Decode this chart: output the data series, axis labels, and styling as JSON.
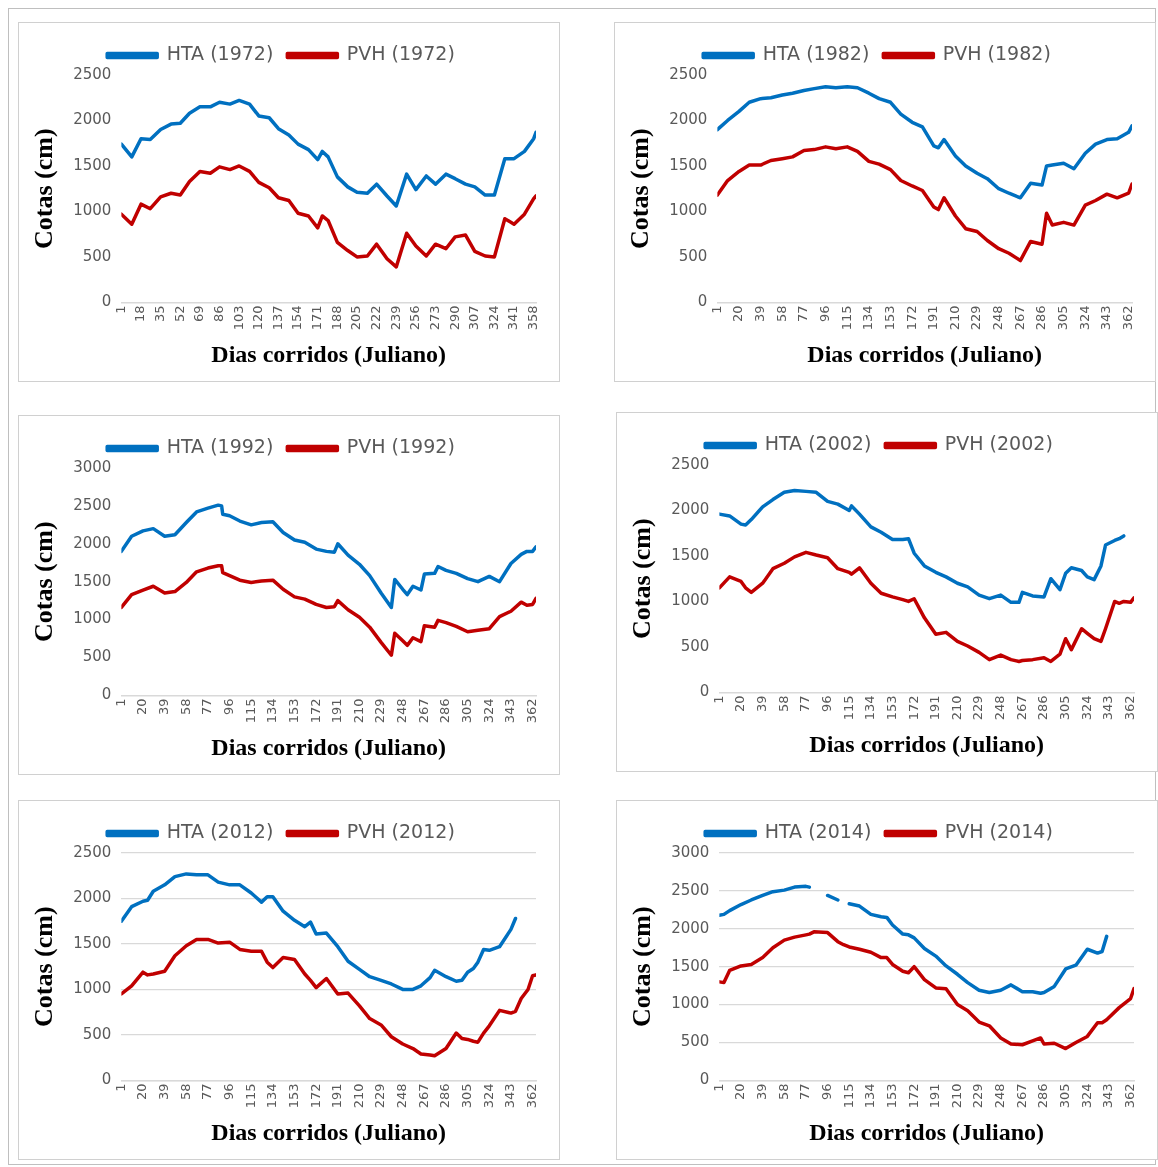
{
  "chart_data": [
    {
      "type": "line",
      "xlabel": "Dias corridos (Juliano)",
      "ylabel": "Cotas (cm)",
      "legend": "top",
      "marker": "none",
      "xlim": [
        1,
        360
      ],
      "xticks": [
        1,
        18,
        35,
        52,
        69,
        86,
        103,
        120,
        137,
        154,
        171,
        188,
        205,
        222,
        239,
        256,
        273,
        290,
        307,
        324,
        341,
        358
      ],
      "ylim": [
        0,
        2500
      ],
      "yticks": [
        0,
        500,
        1000,
        1500,
        2000,
        2500
      ],
      "x": [
        1,
        10,
        18,
        26,
        35,
        44,
        52,
        60,
        69,
        78,
        86,
        95,
        103,
        112,
        120,
        129,
        137,
        146,
        154,
        163,
        171,
        175,
        180,
        188,
        197,
        205,
        214,
        222,
        231,
        239,
        248,
        256,
        265,
        273,
        282,
        290,
        299,
        307,
        316,
        324,
        333,
        341,
        350,
        358,
        360
      ],
      "series": [
        {
          "name": "HTA (1972)",
          "color": "#0070c0",
          "values": [
            1740,
            1600,
            1800,
            1790,
            1900,
            1960,
            1970,
            2080,
            2150,
            2150,
            2200,
            2180,
            2220,
            2180,
            2050,
            2030,
            1910,
            1840,
            1740,
            1680,
            1570,
            1660,
            1600,
            1380,
            1270,
            1210,
            1200,
            1300,
            1170,
            1060,
            1410,
            1240,
            1390,
            1300,
            1410,
            1360,
            1300,
            1270,
            1180,
            1180,
            1580,
            1580,
            1660,
            1800,
            1870
          ]
        },
        {
          "name": "PVH (1972)",
          "color": "#c00000",
          "values": [
            970,
            860,
            1080,
            1030,
            1160,
            1200,
            1180,
            1330,
            1440,
            1420,
            1490,
            1460,
            1500,
            1440,
            1320,
            1260,
            1150,
            1120,
            980,
            950,
            820,
            950,
            900,
            660,
            570,
            500,
            510,
            640,
            480,
            390,
            760,
            620,
            510,
            640,
            590,
            720,
            740,
            560,
            510,
            500,
            920,
            860,
            970,
            1140,
            1170
          ]
        }
      ]
    },
    {
      "type": "line",
      "xlabel": "Dias corridos (Juliano)",
      "ylabel": "Cotas (cm)",
      "legend": "top",
      "marker": "none",
      "xlim": [
        1,
        365
      ],
      "xticks": [
        1,
        20,
        39,
        58,
        77,
        96,
        115,
        134,
        153,
        172,
        191,
        210,
        229,
        248,
        267,
        286,
        305,
        324,
        343,
        362
      ],
      "ylim": [
        0,
        2500
      ],
      "yticks": [
        0,
        500,
        1000,
        1500,
        2000,
        2500
      ],
      "x": [
        1,
        10,
        20,
        29,
        39,
        48,
        58,
        67,
        77,
        86,
        96,
        105,
        115,
        124,
        134,
        143,
        153,
        162,
        172,
        181,
        191,
        195,
        200,
        210,
        219,
        229,
        238,
        248,
        257,
        267,
        276,
        286,
        290,
        295,
        305,
        314,
        324,
        333,
        343,
        352,
        362,
        365
      ],
      "series": [
        {
          "name": "HTA (1982)",
          "color": "#0070c0",
          "values": [
            1900,
            2000,
            2100,
            2200,
            2240,
            2250,
            2280,
            2300,
            2330,
            2350,
            2370,
            2360,
            2370,
            2360,
            2300,
            2240,
            2200,
            2070,
            1980,
            1930,
            1720,
            1700,
            1790,
            1610,
            1500,
            1420,
            1360,
            1250,
            1200,
            1150,
            1310,
            1290,
            1500,
            1510,
            1530,
            1470,
            1640,
            1740,
            1790,
            1800,
            1870,
            1940
          ]
        },
        {
          "name": "PVH (1982)",
          "color": "#c00000",
          "values": [
            1180,
            1340,
            1440,
            1510,
            1510,
            1560,
            1580,
            1600,
            1670,
            1680,
            1710,
            1690,
            1710,
            1660,
            1550,
            1520,
            1460,
            1340,
            1280,
            1230,
            1050,
            1020,
            1150,
            950,
            810,
            780,
            680,
            590,
            540,
            460,
            670,
            640,
            980,
            850,
            880,
            850,
            1070,
            1120,
            1190,
            1150,
            1200,
            1300
          ]
        }
      ]
    },
    {
      "type": "line",
      "xlabel": "Dias corridos (Juliano)",
      "ylabel": "Cotas (cm)",
      "legend": "top",
      "marker": "none",
      "xlim": [
        1,
        365
      ],
      "xticks": [
        1,
        20,
        39,
        58,
        77,
        96,
        115,
        134,
        153,
        172,
        191,
        210,
        229,
        248,
        267,
        286,
        305,
        324,
        343,
        362
      ],
      "ylim": [
        0,
        3000
      ],
      "yticks": [
        0,
        500,
        1000,
        1500,
        2000,
        2500,
        3000
      ],
      "x": [
        1,
        10,
        20,
        29,
        39,
        48,
        58,
        67,
        77,
        86,
        89,
        90,
        96,
        105,
        115,
        124,
        134,
        143,
        153,
        162,
        172,
        181,
        188,
        191,
        200,
        210,
        219,
        229,
        238,
        241,
        248,
        252,
        257,
        264,
        267,
        276,
        279,
        286,
        295,
        305,
        314,
        324,
        333,
        343,
        352,
        357,
        362,
        365
      ],
      "series": [
        {
          "name": "HTA (1992)",
          "color": "#0070c0",
          "values": [
            1900,
            2100,
            2170,
            2200,
            2100,
            2120,
            2280,
            2420,
            2470,
            2510,
            2500,
            2390,
            2370,
            2300,
            2250,
            2280,
            2290,
            2150,
            2050,
            2020,
            1930,
            1900,
            1890,
            2000,
            1850,
            1730,
            1580,
            1350,
            1160,
            1530,
            1400,
            1330,
            1440,
            1390,
            1600,
            1610,
            1700,
            1650,
            1610,
            1540,
            1500,
            1570,
            1500,
            1740,
            1860,
            1900,
            1900,
            1960
          ]
        },
        {
          "name": "PVH (1992)",
          "color": "#c00000",
          "values": [
            1160,
            1330,
            1390,
            1440,
            1350,
            1370,
            1490,
            1630,
            1680,
            1710,
            1710,
            1620,
            1580,
            1520,
            1490,
            1510,
            1520,
            1400,
            1300,
            1270,
            1200,
            1160,
            1170,
            1250,
            1130,
            1030,
            900,
            700,
            530,
            820,
            720,
            660,
            760,
            710,
            920,
            900,
            990,
            960,
            910,
            840,
            860,
            880,
            1040,
            1110,
            1230,
            1190,
            1200,
            1280
          ]
        }
      ]
    },
    {
      "type": "line",
      "xlabel": "Dias corridos (Juliano)",
      "ylabel": "Cotas (cm)",
      "legend": "top",
      "marker": "none",
      "xlim": [
        1,
        365
      ],
      "xticks": [
        1,
        20,
        39,
        58,
        77,
        96,
        115,
        134,
        153,
        172,
        191,
        210,
        229,
        248,
        267,
        286,
        305,
        324,
        343,
        362
      ],
      "ylim": [
        0,
        2500
      ],
      "yticks": [
        0,
        500,
        1000,
        1500,
        2000,
        2500
      ],
      "x": [
        1,
        10,
        20,
        24,
        29,
        39,
        48,
        58,
        67,
        77,
        86,
        96,
        105,
        115,
        117,
        124,
        134,
        143,
        153,
        162,
        167,
        172,
        181,
        191,
        200,
        210,
        219,
        229,
        238,
        248,
        257,
        264,
        267,
        276,
        286,
        292,
        300,
        305,
        310,
        319,
        324,
        330,
        336,
        340,
        348,
        352,
        356,
        362,
        365
      ],
      "series": [
        {
          "name": "HTA (2002)",
          "color": "#0070c0",
          "values": [
            1960,
            1940,
            1850,
            1840,
            1900,
            2040,
            2120,
            2200,
            2220,
            2210,
            2200,
            2100,
            2070,
            2000,
            2050,
            1960,
            1820,
            1760,
            1680,
            1680,
            1690,
            1530,
            1390,
            1320,
            1270,
            1200,
            1160,
            1070,
            1030,
            1070,
            990,
            990,
            1100,
            1060,
            1050,
            1250,
            1130,
            1310,
            1370,
            1340,
            1270,
            1240,
            1390,
            1620,
            1670,
            1690,
            1720,
            null,
            null
          ]
        },
        {
          "name": "PVH (2002)",
          "color": "#c00000",
          "values": [
            1150,
            1270,
            1220,
            1150,
            1100,
            1200,
            1360,
            1420,
            1490,
            1540,
            1510,
            1480,
            1360,
            1320,
            1300,
            1370,
            1200,
            1090,
            1050,
            1020,
            1000,
            1030,
            820,
            640,
            660,
            560,
            510,
            440,
            360,
            410,
            360,
            340,
            350,
            360,
            380,
            340,
            420,
            590,
            470,
            700,
            650,
            590,
            560,
            700,
            1000,
            980,
            1000,
            990,
            1040
          ]
        }
      ]
    },
    {
      "type": "line",
      "xlabel": "Dias corridos (Juliano)",
      "ylabel": "Cotas (cm)",
      "legend": "top",
      "marker": "none",
      "grid": "y",
      "xlim": [
        1,
        365
      ],
      "xticks": [
        1,
        20,
        39,
        58,
        77,
        96,
        115,
        134,
        153,
        172,
        191,
        210,
        229,
        248,
        267,
        286,
        305,
        324,
        343,
        362
      ],
      "ylim": [
        0,
        2500
      ],
      "yticks": [
        0,
        500,
        1000,
        1500,
        2000,
        2500
      ],
      "x": [
        1,
        10,
        20,
        24,
        29,
        39,
        48,
        58,
        67,
        77,
        86,
        96,
        105,
        115,
        124,
        129,
        134,
        143,
        153,
        162,
        167,
        172,
        181,
        191,
        200,
        210,
        219,
        229,
        238,
        248,
        257,
        264,
        272,
        276,
        286,
        295,
        300,
        305,
        310,
        314,
        319,
        324,
        333,
        343,
        347,
        352,
        358,
        362,
        365
      ],
      "series": [
        {
          "name": "HTA (2012)",
          "color": "#0070c0",
          "values": [
            1750,
            1910,
            1970,
            1980,
            2080,
            2150,
            2240,
            2270,
            2260,
            2260,
            2180,
            2150,
            2150,
            2060,
            1960,
            2020,
            2020,
            1860,
            1760,
            1690,
            1740,
            1610,
            1620,
            1470,
            1310,
            1220,
            1140,
            1100,
            1060,
            1000,
            1000,
            1040,
            1130,
            1210,
            1140,
            1090,
            1100,
            1190,
            1230,
            1300,
            1440,
            1430,
            1470,
            1660,
            1780,
            null,
            null,
            null,
            null
          ]
        },
        {
          "name": "PVH (2012)",
          "color": "#c00000",
          "values": [
            950,
            1040,
            1190,
            1160,
            1170,
            1200,
            1370,
            1480,
            1550,
            1550,
            1510,
            1520,
            1440,
            1420,
            1420,
            1300,
            1240,
            1350,
            1330,
            1170,
            1100,
            1020,
            1120,
            950,
            960,
            820,
            680,
            610,
            480,
            400,
            350,
            290,
            280,
            270,
            350,
            520,
            460,
            450,
            430,
            420,
            520,
            600,
            770,
            740,
            760,
            900,
            1000,
            1150,
            1160
          ]
        }
      ]
    },
    {
      "type": "line",
      "xlabel": "Dias corridos (Juliano)",
      "ylabel": "Cotas (cm)",
      "legend": "top",
      "marker": "none",
      "grid": "y",
      "xlim": [
        1,
        365
      ],
      "xticks": [
        1,
        20,
        39,
        58,
        77,
        96,
        115,
        134,
        153,
        172,
        191,
        210,
        229,
        248,
        267,
        286,
        305,
        324,
        343,
        362
      ],
      "ylim": [
        0,
        3000
      ],
      "yticks": [
        0,
        500,
        1000,
        1500,
        2000,
        2500,
        3000
      ],
      "x": [
        1,
        5,
        10,
        20,
        29,
        39,
        48,
        58,
        67,
        77,
        80,
        84,
        96,
        105,
        110,
        115,
        124,
        134,
        143,
        148,
        153,
        162,
        167,
        172,
        181,
        191,
        200,
        210,
        219,
        229,
        238,
        248,
        257,
        267,
        276,
        283,
        286,
        295,
        305,
        314,
        324,
        333,
        337,
        341,
        352,
        362,
        365
      ],
      "series": [
        {
          "name": "HTA (2014)",
          "color": "#0070c0",
          "values": [
            2180,
            2190,
            2240,
            2320,
            2380,
            2440,
            2490,
            2510,
            2550,
            2560,
            2550,
            null,
            2440,
            2380,
            null,
            2330,
            2300,
            2190,
            2160,
            2150,
            2050,
            1930,
            1920,
            1880,
            1740,
            1640,
            1510,
            1400,
            1290,
            1190,
            1160,
            1190,
            1260,
            1170,
            1170,
            1150,
            1160,
            1240,
            1470,
            1520,
            1730,
            1680,
            1700,
            1900,
            null,
            null,
            null
          ]
        },
        {
          "name": "PVH (2014)",
          "color": "#c00000",
          "values": [
            1300,
            1290,
            1450,
            1510,
            1530,
            1620,
            1750,
            1850,
            1890,
            1920,
            1930,
            1960,
            1950,
            1830,
            1790,
            1760,
            1730,
            1690,
            1620,
            1620,
            1530,
            1440,
            1420,
            1500,
            1330,
            1220,
            1210,
            1000,
            920,
            770,
            720,
            560,
            480,
            470,
            520,
            560,
            480,
            490,
            420,
            500,
            580,
            760,
            760,
            800,
            960,
            1080,
            1210
          ]
        }
      ]
    }
  ]
}
